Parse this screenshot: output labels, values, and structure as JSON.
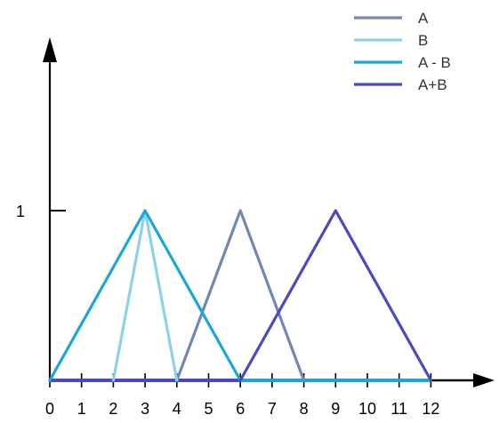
{
  "chart_data": {
    "type": "line",
    "title": "",
    "xlabel": "",
    "ylabel": "",
    "xlim": [
      0,
      12
    ],
    "ylim": [
      0,
      1
    ],
    "x_ticks": [
      0,
      1,
      2,
      3,
      4,
      5,
      6,
      7,
      8,
      9,
      10,
      11,
      12
    ],
    "x_tick_labels": [
      "0",
      "1",
      "2",
      "3",
      "4",
      "5",
      "6",
      "7",
      "8",
      "9",
      "10",
      "11",
      "12"
    ],
    "y_ticks": [
      1
    ],
    "y_tick_labels": [
      "1"
    ],
    "grid": false,
    "legend_position": "top-right",
    "series": [
      {
        "name": "A",
        "color": "#6f88b5",
        "x": [
          4,
          6,
          8
        ],
        "y": [
          0,
          1,
          0
        ]
      },
      {
        "name": "B",
        "color": "#8fcfe8",
        "x": [
          2,
          3,
          4
        ],
        "y": [
          0,
          1,
          0
        ]
      },
      {
        "name": "A - B",
        "color": "#1aa7d8",
        "x": [
          0,
          3,
          6
        ],
        "y": [
          0,
          1,
          0
        ]
      },
      {
        "name": "A+B",
        "color": "#4b49bf",
        "x": [
          6,
          9,
          12
        ],
        "y": [
          0,
          1,
          0
        ]
      }
    ],
    "baseline_segments": [
      {
        "series": "A+B",
        "x": [
          0,
          6
        ]
      },
      {
        "series": "A - B",
        "x": [
          6,
          12
        ]
      }
    ]
  },
  "colors": {
    "axis": "#000000",
    "background": "#ffffff"
  }
}
